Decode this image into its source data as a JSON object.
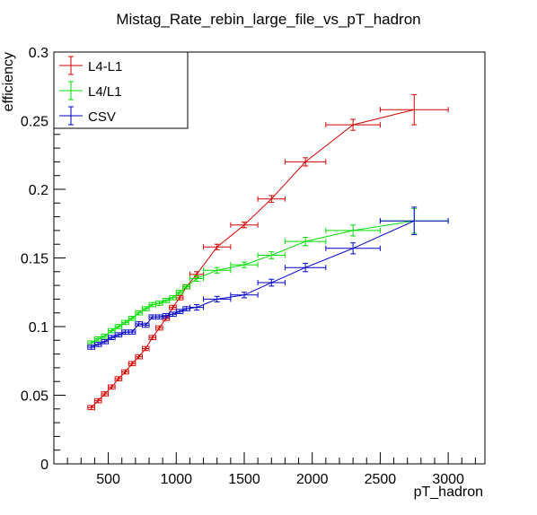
{
  "chart_data": {
    "type": "scatter",
    "title": "Mistag_Rate_rebin_large_file_vs_pT_hadron",
    "xlabel": "pT_hadron",
    "ylabel": "efficiency",
    "xlim": [
      100,
      3270
    ],
    "ylim": [
      0,
      0.3
    ],
    "xticks": [
      500,
      1000,
      1500,
      2000,
      2500,
      3000
    ],
    "xtick_labels": [
      "500",
      "1000",
      "1500",
      "2000",
      "2500",
      "3000"
    ],
    "yticks": [
      0,
      0.05,
      0.1,
      0.15,
      0.2,
      0.25,
      0.3
    ],
    "ytick_labels": [
      "0",
      "0.05",
      "0.1",
      "0.15",
      "0.2",
      "0.25",
      "0.3"
    ],
    "grid": false,
    "legend_position": "top-left",
    "series": [
      {
        "name": "L4-L1",
        "color": "#d40000",
        "points": [
          {
            "x": 375,
            "y": 0.041,
            "xerr": 25,
            "yerr": 0.0015
          },
          {
            "x": 425,
            "y": 0.046,
            "xerr": 25,
            "yerr": 0.0015
          },
          {
            "x": 475,
            "y": 0.051,
            "xerr": 25,
            "yerr": 0.0015
          },
          {
            "x": 525,
            "y": 0.056,
            "xerr": 25,
            "yerr": 0.0015
          },
          {
            "x": 575,
            "y": 0.062,
            "xerr": 25,
            "yerr": 0.0015
          },
          {
            "x": 625,
            "y": 0.067,
            "xerr": 25,
            "yerr": 0.0015
          },
          {
            "x": 675,
            "y": 0.073,
            "xerr": 25,
            "yerr": 0.0015
          },
          {
            "x": 725,
            "y": 0.078,
            "xerr": 25,
            "yerr": 0.0015
          },
          {
            "x": 775,
            "y": 0.084,
            "xerr": 25,
            "yerr": 0.0015
          },
          {
            "x": 825,
            "y": 0.092,
            "xerr": 25,
            "yerr": 0.0015
          },
          {
            "x": 875,
            "y": 0.099,
            "xerr": 25,
            "yerr": 0.0015
          },
          {
            "x": 925,
            "y": 0.106,
            "xerr": 25,
            "yerr": 0.0015
          },
          {
            "x": 975,
            "y": 0.114,
            "xerr": 25,
            "yerr": 0.0015
          },
          {
            "x": 1025,
            "y": 0.121,
            "xerr": 25,
            "yerr": 0.0015
          },
          {
            "x": 1075,
            "y": 0.129,
            "xerr": 25,
            "yerr": 0.0015
          },
          {
            "x": 1150,
            "y": 0.138,
            "xerr": 50,
            "yerr": 0.002
          },
          {
            "x": 1300,
            "y": 0.158,
            "xerr": 100,
            "yerr": 0.002
          },
          {
            "x": 1500,
            "y": 0.174,
            "xerr": 100,
            "yerr": 0.002
          },
          {
            "x": 1700,
            "y": 0.193,
            "xerr": 100,
            "yerr": 0.0025
          },
          {
            "x": 1950,
            "y": 0.22,
            "xerr": 150,
            "yerr": 0.003
          },
          {
            "x": 2300,
            "y": 0.247,
            "xerr": 200,
            "yerr": 0.004
          },
          {
            "x": 2750,
            "y": 0.258,
            "xerr": 250,
            "yerr": 0.011
          }
        ]
      },
      {
        "name": "L4/L1",
        "color": "#00dd00",
        "points": [
          {
            "x": 375,
            "y": 0.088,
            "xerr": 25,
            "yerr": 0.0015
          },
          {
            "x": 425,
            "y": 0.091,
            "xerr": 25,
            "yerr": 0.0015
          },
          {
            "x": 475,
            "y": 0.093,
            "xerr": 25,
            "yerr": 0.0015
          },
          {
            "x": 525,
            "y": 0.097,
            "xerr": 25,
            "yerr": 0.0015
          },
          {
            "x": 575,
            "y": 0.1,
            "xerr": 25,
            "yerr": 0.0015
          },
          {
            "x": 625,
            "y": 0.103,
            "xerr": 25,
            "yerr": 0.0015
          },
          {
            "x": 675,
            "y": 0.106,
            "xerr": 25,
            "yerr": 0.0015
          },
          {
            "x": 725,
            "y": 0.11,
            "xerr": 25,
            "yerr": 0.0015
          },
          {
            "x": 775,
            "y": 0.113,
            "xerr": 25,
            "yerr": 0.0015
          },
          {
            "x": 825,
            "y": 0.116,
            "xerr": 25,
            "yerr": 0.0015
          },
          {
            "x": 875,
            "y": 0.117,
            "xerr": 25,
            "yerr": 0.0015
          },
          {
            "x": 925,
            "y": 0.119,
            "xerr": 25,
            "yerr": 0.0015
          },
          {
            "x": 975,
            "y": 0.121,
            "xerr": 25,
            "yerr": 0.0015
          },
          {
            "x": 1025,
            "y": 0.125,
            "xerr": 25,
            "yerr": 0.0015
          },
          {
            "x": 1075,
            "y": 0.129,
            "xerr": 25,
            "yerr": 0.0015
          },
          {
            "x": 1150,
            "y": 0.135,
            "xerr": 50,
            "yerr": 0.002
          },
          {
            "x": 1300,
            "y": 0.141,
            "xerr": 100,
            "yerr": 0.002
          },
          {
            "x": 1500,
            "y": 0.145,
            "xerr": 100,
            "yerr": 0.002
          },
          {
            "x": 1700,
            "y": 0.152,
            "xerr": 100,
            "yerr": 0.0025
          },
          {
            "x": 1950,
            "y": 0.162,
            "xerr": 150,
            "yerr": 0.003
          },
          {
            "x": 2300,
            "y": 0.17,
            "xerr": 200,
            "yerr": 0.004
          },
          {
            "x": 2750,
            "y": 0.177,
            "xerr": 250,
            "yerr": 0.009
          }
        ]
      },
      {
        "name": "CSV",
        "color": "#0000cc",
        "points": [
          {
            "x": 375,
            "y": 0.085,
            "xerr": 25,
            "yerr": 0.0015
          },
          {
            "x": 425,
            "y": 0.087,
            "xerr": 25,
            "yerr": 0.0015
          },
          {
            "x": 475,
            "y": 0.089,
            "xerr": 25,
            "yerr": 0.0015
          },
          {
            "x": 525,
            "y": 0.092,
            "xerr": 25,
            "yerr": 0.0015
          },
          {
            "x": 575,
            "y": 0.094,
            "xerr": 25,
            "yerr": 0.0015
          },
          {
            "x": 625,
            "y": 0.096,
            "xerr": 25,
            "yerr": 0.0015
          },
          {
            "x": 675,
            "y": 0.096,
            "xerr": 25,
            "yerr": 0.0015
          },
          {
            "x": 725,
            "y": 0.102,
            "xerr": 25,
            "yerr": 0.0015
          },
          {
            "x": 775,
            "y": 0.101,
            "xerr": 25,
            "yerr": 0.0015
          },
          {
            "x": 825,
            "y": 0.107,
            "xerr": 25,
            "yerr": 0.0015
          },
          {
            "x": 875,
            "y": 0.107,
            "xerr": 25,
            "yerr": 0.0015
          },
          {
            "x": 925,
            "y": 0.108,
            "xerr": 25,
            "yerr": 0.0015
          },
          {
            "x": 975,
            "y": 0.109,
            "xerr": 25,
            "yerr": 0.0015
          },
          {
            "x": 1025,
            "y": 0.111,
            "xerr": 25,
            "yerr": 0.0015
          },
          {
            "x": 1075,
            "y": 0.113,
            "xerr": 25,
            "yerr": 0.0015
          },
          {
            "x": 1150,
            "y": 0.114,
            "xerr": 50,
            "yerr": 0.002
          },
          {
            "x": 1300,
            "y": 0.12,
            "xerr": 100,
            "yerr": 0.002
          },
          {
            "x": 1500,
            "y": 0.123,
            "xerr": 100,
            "yerr": 0.002
          },
          {
            "x": 1700,
            "y": 0.132,
            "xerr": 100,
            "yerr": 0.0025
          },
          {
            "x": 1950,
            "y": 0.143,
            "xerr": 150,
            "yerr": 0.003
          },
          {
            "x": 2300,
            "y": 0.157,
            "xerr": 200,
            "yerr": 0.004
          },
          {
            "x": 2750,
            "y": 0.177,
            "xerr": 250,
            "yerr": 0.01
          }
        ]
      }
    ]
  }
}
